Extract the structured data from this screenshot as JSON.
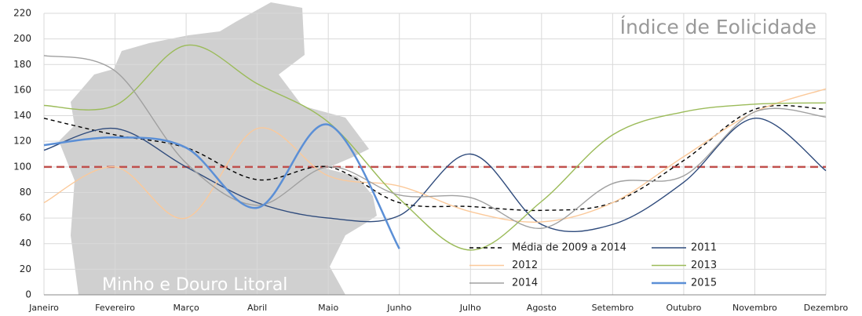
{
  "chart_data": {
    "type": "line",
    "title": "Índice de Eolicidade",
    "annotation": "Minho e Douro Litoral",
    "categories": [
      "Janeiro",
      "Fevereiro",
      "Março",
      "Abril",
      "Maio",
      "Junho",
      "Julho",
      "Agosto",
      "Setembro",
      "Outubro",
      "Novembro",
      "Dezembro"
    ],
    "ylim": [
      0,
      220
    ],
    "yticks": [
      0,
      20,
      40,
      60,
      80,
      100,
      120,
      140,
      160,
      180,
      200,
      220
    ],
    "grid": true,
    "reference_line": {
      "value": 100,
      "color": "#c0504d"
    },
    "series": [
      {
        "name": "Média de 2009 a 2014",
        "color": "#000000",
        "dashed": true,
        "values": [
          138,
          125,
          115,
          90,
          100,
          72,
          69,
          66,
          72,
          105,
          145,
          145
        ]
      },
      {
        "name": "2011",
        "color": "#2f4b7c",
        "values": [
          113,
          130,
          100,
          72,
          60,
          62,
          110,
          55,
          55,
          88,
          138,
          97
        ]
      },
      {
        "name": "2012",
        "color": "#fbc99a",
        "values": [
          72,
          100,
          60,
          130,
          93,
          85,
          65,
          57,
          72,
          108,
          143,
          161
        ]
      },
      {
        "name": "2013",
        "color": "#9bbb59",
        "values": [
          148,
          148,
          195,
          165,
          135,
          75,
          35,
          73,
          125,
          143,
          149,
          150
        ]
      },
      {
        "name": "2014",
        "color": "#a0a0a0",
        "values": [
          187,
          175,
          103,
          70,
          100,
          78,
          76,
          52,
          87,
          93,
          143,
          139
        ]
      },
      {
        "name": "2015",
        "color": "#5b8fd6",
        "width": 2.5,
        "values": [
          117,
          123,
          115,
          68,
          133,
          36,
          null,
          null,
          null,
          null,
          null,
          null
        ]
      }
    ]
  }
}
